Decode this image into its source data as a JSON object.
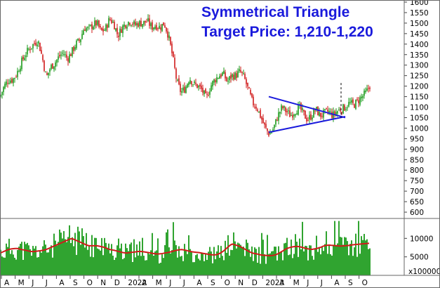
{
  "chart_data": [
    {
      "type": "candlestick",
      "title": "",
      "annotations": [
        "Symmetrical Triangle",
        "Target Price: 1,210-1,220"
      ],
      "x_labels": [
        "A",
        "M",
        "J",
        "J",
        "A",
        "S",
        "O",
        "N",
        "D",
        "2022",
        "A",
        "M",
        "J",
        "J",
        "A",
        "S",
        "O",
        "N",
        "D",
        "2023",
        "A",
        "M",
        "J",
        "J",
        "A",
        "S",
        "O"
      ],
      "y_ticks": [
        "600",
        "650",
        "700",
        "750",
        "800",
        "850",
        "900",
        "950",
        "1000",
        "1050",
        "1100",
        "1150",
        "1200",
        "1250",
        "1300",
        "1350",
        "1400",
        "1450",
        "1500",
        "1550",
        "1600"
      ],
      "ylim": [
        570,
        1610
      ],
      "up_color": "#1a9a1a",
      "down_color": "#d01a1a",
      "trendline_color": "#1a1adc",
      "series": [
        {
          "x": [
            0,
            6,
            12,
            18,
            24,
            30,
            36,
            42,
            48,
            54,
            60,
            66,
            72,
            78,
            84,
            90,
            96,
            102,
            108,
            114,
            120,
            126,
            132,
            138,
            144,
            150,
            156,
            162,
            168,
            174,
            180,
            186,
            192,
            198,
            204,
            210,
            216,
            222,
            228,
            234,
            240,
            246,
            252,
            258,
            264,
            270,
            276,
            282,
            288,
            294,
            300,
            306,
            312,
            318,
            324,
            330,
            336,
            342,
            348,
            354,
            360,
            366,
            372,
            378,
            384,
            390,
            396,
            402,
            408,
            414,
            420,
            426,
            432,
            438,
            444,
            450,
            456,
            462,
            468,
            474,
            480,
            486,
            492,
            498,
            504,
            510,
            516,
            522,
            528
          ],
          "y": [
            1150,
            1200,
            1230,
            1230,
            1260,
            1310,
            1350,
            1380,
            1400,
            1420,
            1340,
            1240,
            1290,
            1310,
            1340,
            1360,
            1330,
            1360,
            1400,
            1420,
            1480,
            1470,
            1490,
            1500,
            1460,
            1470,
            1520,
            1500,
            1440,
            1480,
            1500,
            1510,
            1490,
            1500,
            1500,
            1510,
            1480,
            1490,
            1480,
            1500,
            1440,
            1340,
            1220,
            1170,
            1190,
            1240,
            1210,
            1200,
            1180,
            1140,
            1200,
            1230,
            1250,
            1260,
            1220,
            1250,
            1250,
            1270,
            1240,
            1180,
            1120,
            1100,
            1050,
            1000,
            970,
            1000,
            1060,
            1100,
            1080,
            1060,
            1080,
            1100,
            1070,
            1040,
            1060,
            1090,
            1060,
            1070,
            1080,
            1060,
            1080,
            1090,
            1100,
            1120,
            1110,
            1130,
            1150,
            1170,
            1210
          ]
        }
      ],
      "breakouts": [
        {
          "name": "upper",
          "x": [
            383,
            492
          ],
          "y": [
            1150,
            1050
          ]
        },
        {
          "name": "lower",
          "x": [
            383,
            492
          ],
          "y": [
            980,
            1055
          ]
        }
      ]
    },
    {
      "type": "bar",
      "title": "",
      "y_ticks": [
        "5000",
        "10000"
      ],
      "unit_label": "x100000",
      "ylim": [
        0,
        15000
      ],
      "bar_color": "#1a9a1a",
      "ma_color": "#d01a1a",
      "ma_values": [
        6000,
        6500,
        7000,
        7200,
        7300,
        7000,
        6800,
        6500,
        6400,
        6600,
        6700,
        7000,
        7500,
        8000,
        8500,
        9000,
        9500,
        10000,
        9500,
        9000,
        8500,
        8000,
        8000,
        8000,
        7800,
        7500,
        7000,
        6800,
        6500,
        6200,
        6000,
        6200,
        6300,
        6500,
        6400,
        6200,
        6000,
        5800,
        5800,
        6000,
        6200,
        6500,
        6800,
        7000,
        6800,
        6500,
        6300,
        6200,
        6000,
        5800,
        5600,
        5500,
        5800,
        6500,
        7500,
        8500,
        8200,
        7800,
        7200,
        6500,
        6000,
        5800,
        5500,
        5400,
        5300,
        5400,
        5800,
        6500,
        7200,
        7600,
        7800,
        7800,
        7500,
        7200,
        7000,
        7200,
        7500,
        8000,
        8200,
        8100,
        8000,
        7900,
        8000,
        8100,
        8300,
        8400,
        8500,
        8600,
        8700
      ]
    }
  ]
}
